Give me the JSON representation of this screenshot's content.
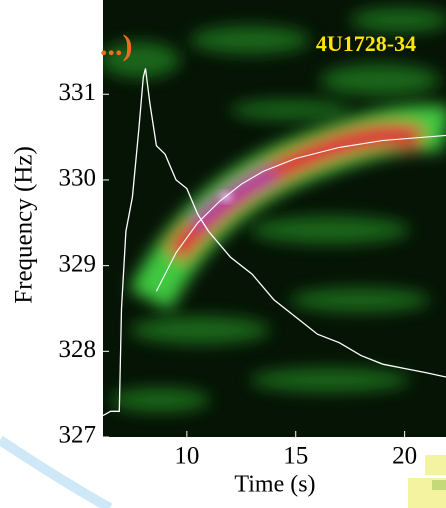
{
  "chart_data": {
    "type": "line",
    "title": "4U1728-34",
    "subtitle": "...)",
    "x_label": "Time (s)",
    "y_label": "Frequency (Hz)",
    "xlim": [
      6.15,
      21.9
    ],
    "ylim": [
      327,
      332.1
    ],
    "xticks": [
      10,
      15,
      20
    ],
    "yticks": [
      327,
      328,
      329,
      330,
      331
    ],
    "series": [
      {
        "color": "#ffffff",
        "x": [
          6.15,
          6.5,
          6.9,
          7.0,
          7.2,
          7.5,
          7.8,
          8.0,
          8.1,
          8.3,
          8.6,
          9.0,
          9.5,
          10,
          10.5,
          11,
          12,
          13,
          14,
          15,
          16,
          17,
          18,
          19,
          20,
          21,
          21.9
        ],
        "values": [
          327.25,
          327.3,
          327.3,
          328.5,
          329.4,
          329.8,
          330.6,
          331.2,
          331.3,
          330.9,
          330.4,
          330.3,
          330.0,
          329.9,
          329.6,
          329.4,
          329.1,
          328.9,
          328.6,
          328.4,
          328.2,
          328.1,
          327.95,
          327.85,
          327.8,
          327.75,
          327.7
        ]
      },
      {
        "color": "#ffffff",
        "x": [
          8.6,
          9.5,
          10.5,
          11.5,
          12.5,
          13.5,
          15,
          17,
          19,
          21.9
        ],
        "values": [
          328.7,
          329.15,
          329.5,
          329.75,
          329.95,
          330.1,
          330.25,
          330.38,
          330.46,
          330.52
        ]
      }
    ]
  }
}
